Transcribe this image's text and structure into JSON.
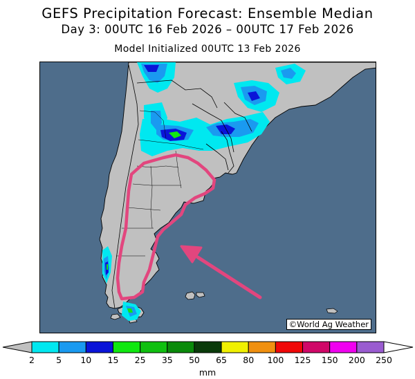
{
  "title": "GEFS Precipitation Forecast: Ensemble Median",
  "subtitle": "Day 3: 00UTC 16 Feb 2026 – 00UTC 17 Feb 2026",
  "init_line": "Model Initialized 00UTC 13 Feb 2026",
  "credit": "©World Ag Weather",
  "colors": {
    "ocean": "#4e6d8b",
    "land": "#c0c0c0",
    "highlight_outline": "#e2467e",
    "arrow": "#e2467e"
  },
  "map": {
    "region": "Southern South America (Argentina, Chile, Uruguay, southern Brazil)",
    "highlighted_area": "Southern Argentina outlined with pink contour",
    "arrow_direction": "pointing up-left toward outlined area"
  },
  "colorbar": {
    "unit": "mm",
    "ticks": [
      "2",
      "5",
      "10",
      "15",
      "25",
      "35",
      "50",
      "65",
      "80",
      "100",
      "125",
      "150",
      "200",
      "250"
    ],
    "colors": [
      "#00e8f0",
      "#1a9af0",
      "#0a14d8",
      "#10e810",
      "#10c010",
      "#0a8a0a",
      "#0a3a0a",
      "#f0f000",
      "#f09010",
      "#f00808",
      "#d00868",
      "#f000f0",
      "#9a5cd0"
    ]
  }
}
